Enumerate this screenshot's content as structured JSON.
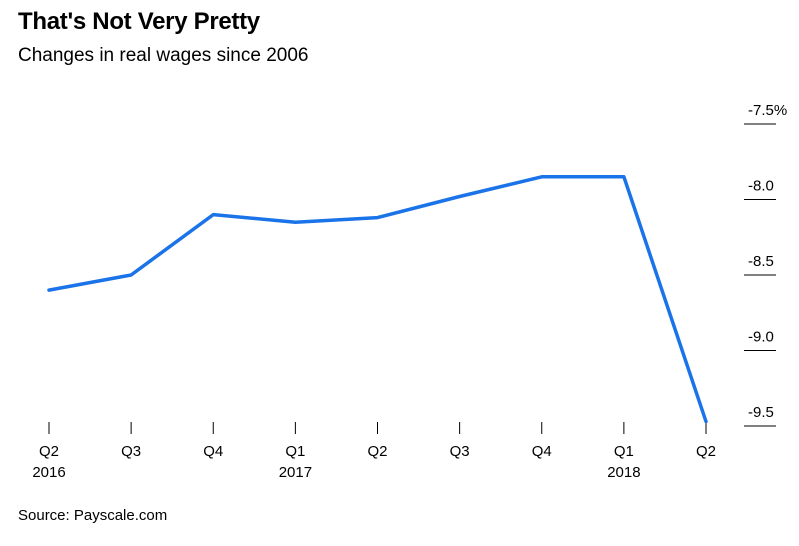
{
  "title": "That's Not Very Pretty",
  "subtitle": "Changes in real wages since 2006",
  "source": "Source: Payscale.com",
  "colors": {
    "line": "#1a73e8"
  },
  "chart_data": {
    "type": "line",
    "title": "That's Not Very Pretty",
    "subtitle": "Changes in real wages since 2006",
    "xlabel": "",
    "ylabel": "",
    "categories": [
      "Q2 2016",
      "Q3",
      "Q4",
      "Q1 2017",
      "Q2",
      "Q3",
      "Q4",
      "Q1 2018",
      "Q2"
    ],
    "x_tick_labels": [
      {
        "quarter": "Q2",
        "year": "2016"
      },
      {
        "quarter": "Q3",
        "year": ""
      },
      {
        "quarter": "Q4",
        "year": ""
      },
      {
        "quarter": "Q1",
        "year": "2017"
      },
      {
        "quarter": "Q2",
        "year": ""
      },
      {
        "quarter": "Q3",
        "year": ""
      },
      {
        "quarter": "Q4",
        "year": ""
      },
      {
        "quarter": "Q1",
        "year": "2018"
      },
      {
        "quarter": "Q2",
        "year": ""
      }
    ],
    "series": [
      {
        "values": [
          -8.6,
          -8.5,
          -8.1,
          -8.15,
          -8.12,
          -7.98,
          -7.85,
          -7.85,
          -9.47
        ]
      }
    ],
    "y_ticks": [
      -7.5,
      -8.0,
      -8.5,
      -9.0,
      -9.5
    ],
    "y_tick_labels": [
      "-7.5%",
      "-8.0",
      "-8.5",
      "-9.0",
      "-9.5"
    ],
    "ylim": [
      -9.5,
      -7.5
    ],
    "y_axis_position": "right",
    "grid": false,
    "legend": "none"
  }
}
